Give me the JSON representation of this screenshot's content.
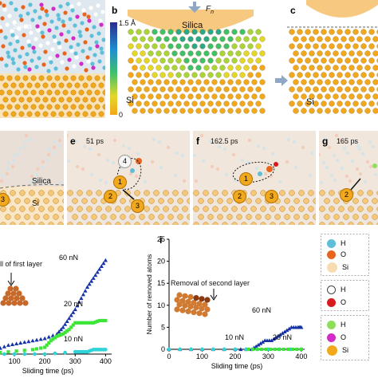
{
  "panels": {
    "b": "b",
    "c": "c",
    "e": "e",
    "f": "f",
    "g": "g",
    "i": "i"
  },
  "labels": {
    "silica_a": "Silica",
    "silica_b": "Silica",
    "silica_d": "Silica",
    "si_b": "Si",
    "si_c": "Si",
    "si_d": "Si",
    "fn": "F",
    "fn_sub": "n",
    "colorbar_max": "1.5 Å",
    "colorbar_min": "0",
    "time_e": "51 ps",
    "time_f": "162.5 ps",
    "time_g": "165 ps"
  },
  "atoms": {
    "d_left": "3",
    "e_top": "4",
    "e_one": "1",
    "e_two": "2",
    "e_three": "3",
    "f_one": "1",
    "f_two": "2",
    "f_three": "3",
    "g_two": "2"
  },
  "colors": {
    "H": "#5fbfd9",
    "O": "#e8651e",
    "Si": "#f2a81d",
    "H_removed": "#ffffff",
    "O_removed": "#d8191f",
    "H_other": "#8ede5a",
    "O_other": "#d22bc8",
    "sand": "#f6c97a"
  },
  "legend": {
    "group1": [
      {
        "symbol": "H",
        "icon": "hydrogen-cyan"
      },
      {
        "symbol": "O",
        "icon": "oxygen-orange"
      },
      {
        "symbol": "Si",
        "icon": "silicon-pale"
      }
    ],
    "group2": [
      {
        "symbol": "H",
        "icon": "hydrogen-white"
      },
      {
        "symbol": "O",
        "icon": "oxygen-red"
      }
    ],
    "group3": [
      {
        "symbol": "H",
        "icon": "hydrogen-green"
      },
      {
        "symbol": "O",
        "icon": "oxygen-magenta"
      },
      {
        "symbol": "Si",
        "icon": "silicon-orange"
      }
    ]
  },
  "chart_data": [
    {
      "type": "scatter",
      "panel": "h",
      "xlabel": "Sliding time (ps)",
      "ylabel": "",
      "xlim": [
        0,
        420
      ],
      "ylim": [
        0,
        50
      ],
      "xticks": [
        "100",
        "200",
        "300",
        "400"
      ],
      "annotation": "ll of first layer",
      "series": [
        {
          "name": "60 nN",
          "color": "#1632a8",
          "marker": "triangle",
          "x": [
            0,
            40,
            80,
            120,
            160,
            200,
            240,
            260,
            280,
            300,
            320,
            340,
            360,
            380,
            400
          ],
          "y": [
            0,
            2,
            4,
            5,
            6,
            7,
            9,
            12,
            16,
            20,
            25,
            30,
            34,
            38,
            42
          ]
        },
        {
          "name": "20 nN",
          "color": "#3de636",
          "marker": "square",
          "x": [
            0,
            80,
            160,
            200,
            220,
            240,
            260,
            280,
            300,
            320,
            340,
            360,
            380,
            400
          ],
          "y": [
            0,
            1,
            2,
            3,
            6,
            8,
            9,
            11,
            14,
            14,
            14,
            14,
            15,
            15
          ]
        },
        {
          "name": "10 nN",
          "color": "#2fd4d8",
          "marker": "circle",
          "x": [
            0,
            100,
            200,
            300,
            320,
            340,
            360,
            380,
            400
          ],
          "y": [
            0,
            0,
            0,
            1,
            1,
            1,
            2,
            2,
            2
          ]
        }
      ]
    },
    {
      "type": "scatter",
      "panel": "i",
      "xlabel": "Sliding time (ps)",
      "ylabel": "Number of removed atoms",
      "xlim": [
        0,
        410
      ],
      "ylim": [
        0,
        25
      ],
      "xticks": [
        "0",
        "100",
        "200",
        "300",
        "400"
      ],
      "yticks": [
        "0",
        "5",
        "10",
        "15",
        "20",
        "25"
      ],
      "annotation": "Removal of second layer",
      "series": [
        {
          "name": "60 nN",
          "color": "#1632a8",
          "marker": "triangle",
          "x": [
            0,
            100,
            200,
            250,
            270,
            290,
            310,
            330,
            350,
            370,
            390,
            400
          ],
          "y": [
            0,
            0,
            0,
            0,
            1,
            2,
            2,
            3,
            4,
            5,
            5,
            5
          ]
        },
        {
          "name": "10 nN",
          "color": "#2fd4d8",
          "marker": "circle",
          "x": [
            0,
            100,
            200,
            300,
            400
          ],
          "y": [
            0,
            0,
            0,
            0,
            0
          ]
        },
        {
          "name": "20 nN",
          "color": "#3de636",
          "marker": "square",
          "x": [
            240,
            280,
            320,
            360,
            400
          ],
          "y": [
            0,
            0,
            0,
            0,
            0
          ]
        }
      ]
    }
  ]
}
